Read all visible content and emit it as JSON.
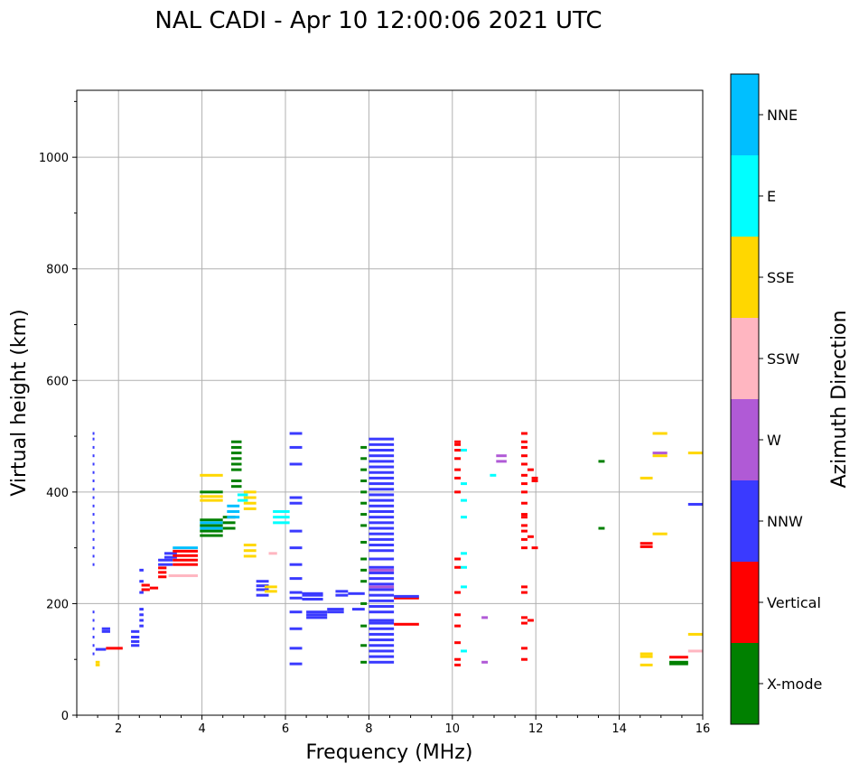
{
  "chart_data": {
    "type": "scatter",
    "title": "NAL CADI - Apr 10 12:00:06 2021 UTC",
    "xlabel": "Frequency (MHz)",
    "ylabel": "Virtual height (km)",
    "xlim": [
      1.0,
      16.0
    ],
    "ylim": [
      0,
      1120
    ],
    "xticks": [
      2,
      4,
      6,
      8,
      10,
      12,
      14,
      16
    ],
    "yticks": [
      0,
      200,
      400,
      600,
      800,
      1000
    ],
    "grid": true,
    "colorbar": {
      "label": "Azimuth Direction",
      "categories": [
        {
          "name": "X-mode",
          "color": "#008000"
        },
        {
          "name": "Vertical",
          "color": "#ff0000"
        },
        {
          "name": "NNW",
          "color": "#3a3aff"
        },
        {
          "name": "W",
          "color": "#b05ad6"
        },
        {
          "name": "SSW",
          "color": "#ffb6c1"
        },
        {
          "name": "SSE",
          "color": "#ffd700"
        },
        {
          "name": "E",
          "color": "#00ffff"
        },
        {
          "name": "NNE",
          "color": "#00bfff"
        }
      ]
    },
    "echoes": [
      {
        "f1": 1.38,
        "f2": 1.42,
        "h": [
          110,
          125,
          140,
          155,
          170,
          185,
          270,
          285,
          300,
          315,
          330,
          345,
          360,
          375,
          390,
          405,
          420,
          435,
          450,
          465,
          480,
          495,
          505
        ],
        "c": "NNW"
      },
      {
        "f1": 1.45,
        "f2": 1.55,
        "h": [
          95,
          90
        ],
        "c": "SSE"
      },
      {
        "f1": 1.45,
        "f2": 1.7,
        "h": [
          118
        ],
        "c": "NNW"
      },
      {
        "f1": 1.6,
        "f2": 1.8,
        "h": [
          150,
          155
        ],
        "c": "NNW"
      },
      {
        "f1": 1.7,
        "f2": 2.1,
        "h": [
          120
        ],
        "c": "Vertical"
      },
      {
        "f1": 2.3,
        "f2": 2.5,
        "h": [
          125,
          132,
          140,
          150
        ],
        "c": "NNW"
      },
      {
        "f1": 2.5,
        "f2": 2.6,
        "h": [
          160,
          170,
          180,
          190,
          220,
          240,
          260
        ],
        "c": "NNW"
      },
      {
        "f1": 2.55,
        "f2": 2.75,
        "h": [
          225,
          233
        ],
        "c": "Vertical"
      },
      {
        "f1": 2.75,
        "f2": 2.95,
        "h": [
          228
        ],
        "c": "Vertical"
      },
      {
        "f1": 2.95,
        "f2": 3.15,
        "h": [
          248,
          256,
          264
        ],
        "c": "Vertical"
      },
      {
        "f1": 2.95,
        "f2": 3.3,
        "h": [
          270,
          278
        ],
        "c": "NNW"
      },
      {
        "f1": 3.1,
        "f2": 3.4,
        "h": [
          283,
          290
        ],
        "c": "NNW"
      },
      {
        "f1": 3.3,
        "f2": 3.9,
        "h": [
          270,
          278,
          286,
          294
        ],
        "c": "Vertical"
      },
      {
        "f1": 3.3,
        "f2": 3.9,
        "h": [
          300
        ],
        "c": "NNE"
      },
      {
        "f1": 3.2,
        "f2": 3.9,
        "h": [
          250
        ],
        "c": "SSW"
      },
      {
        "f1": 3.95,
        "f2": 4.5,
        "h": [
          385,
          392
        ],
        "c": "SSE"
      },
      {
        "f1": 3.95,
        "f2": 4.5,
        "h": [
          400
        ],
        "c": "X-mode"
      },
      {
        "f1": 3.95,
        "f2": 4.5,
        "h": [
          430
        ],
        "c": "SSE"
      },
      {
        "f1": 3.95,
        "f2": 4.5,
        "h": [
          322,
          330,
          340,
          350
        ],
        "c": "X-mode"
      },
      {
        "f1": 3.95,
        "f2": 4.5,
        "h": [
          335,
          345
        ],
        "c": "NNE"
      },
      {
        "f1": 4.5,
        "f2": 4.8,
        "h": [
          335,
          345,
          355
        ],
        "c": "X-mode"
      },
      {
        "f1": 4.6,
        "f2": 4.9,
        "h": [
          355,
          365,
          375
        ],
        "c": "NNE"
      },
      {
        "f1": 4.7,
        "f2": 4.95,
        "h": [
          410,
          420,
          440,
          450,
          460,
          470,
          480,
          490
        ],
        "c": "X-mode"
      },
      {
        "f1": 4.85,
        "f2": 5.1,
        "h": [
          385,
          395
        ],
        "c": "E"
      },
      {
        "f1": 5.0,
        "f2": 5.3,
        "h": [
          370,
          380,
          390,
          400
        ],
        "c": "SSE"
      },
      {
        "f1": 5.0,
        "f2": 5.3,
        "h": [
          285,
          295,
          305
        ],
        "c": "SSE"
      },
      {
        "f1": 5.3,
        "f2": 5.6,
        "h": [
          225,
          232,
          240
        ],
        "c": "NNW"
      },
      {
        "f1": 5.5,
        "f2": 5.8,
        "h": [
          230,
          222
        ],
        "c": "SSE"
      },
      {
        "f1": 5.3,
        "f2": 5.6,
        "h": [
          215
        ],
        "c": "NNW"
      },
      {
        "f1": 5.6,
        "f2": 5.8,
        "h": [
          290
        ],
        "c": "SSW"
      },
      {
        "f1": 5.7,
        "f2": 6.1,
        "h": [
          345,
          355,
          365
        ],
        "c": "E"
      },
      {
        "f1": 6.1,
        "f2": 6.4,
        "h": [
          505,
          480,
          450,
          390,
          380,
          330,
          300,
          270,
          245,
          220,
          210,
          185,
          155,
          120,
          92
        ],
        "c": "NNW"
      },
      {
        "f1": 6.4,
        "f2": 6.9,
        "h": [
          208,
          215,
          218
        ],
        "c": "NNW"
      },
      {
        "f1": 6.5,
        "f2": 7.0,
        "h": [
          175,
          180,
          185
        ],
        "c": "NNW"
      },
      {
        "f1": 7.0,
        "f2": 7.4,
        "h": [
          185,
          190
        ],
        "c": "NNW"
      },
      {
        "f1": 7.2,
        "f2": 7.5,
        "h": [
          215,
          222
        ],
        "c": "NNW"
      },
      {
        "f1": 7.5,
        "f2": 7.9,
        "h": [
          218
        ],
        "c": "NNW"
      },
      {
        "f1": 7.6,
        "f2": 7.9,
        "h": [
          190
        ],
        "c": "NNW"
      },
      {
        "f1": 7.8,
        "f2": 7.95,
        "h": [
          95,
          125,
          160,
          200,
          240,
          260,
          280,
          310,
          340,
          360,
          380,
          400,
          420,
          440,
          460,
          480
        ],
        "c": "X-mode"
      },
      {
        "f1": 8.0,
        "f2": 8.6,
        "h": [
          95,
          105,
          115,
          125,
          135,
          145,
          155,
          165,
          170,
          185,
          195,
          205,
          215,
          225,
          235,
          245,
          255,
          265,
          280,
          295,
          305,
          315,
          325,
          335,
          345,
          355,
          365,
          375,
          385,
          395,
          405,
          415,
          425,
          435,
          445,
          455,
          465,
          475,
          485,
          495
        ],
        "c": "NNW"
      },
      {
        "f1": 8.0,
        "f2": 8.6,
        "h": [
          230,
          260
        ],
        "c": "W"
      },
      {
        "f1": 8.6,
        "f2": 9.2,
        "h": [
          163,
          210
        ],
        "c": "Vertical"
      },
      {
        "f1": 8.6,
        "f2": 9.2,
        "h": [
          213
        ],
        "c": "NNW"
      },
      {
        "f1": 10.05,
        "f2": 10.2,
        "h": [
          90,
          100,
          130,
          160,
          180,
          220,
          265,
          280,
          400,
          425,
          440,
          460,
          475,
          485,
          490
        ],
        "c": "Vertical"
      },
      {
        "f1": 10.2,
        "f2": 10.35,
        "h": [
          115,
          230,
          265,
          290,
          355,
          385,
          415,
          475
        ],
        "c": "E"
      },
      {
        "f1": 10.7,
        "f2": 10.85,
        "h": [
          95,
          175
        ],
        "c": "W"
      },
      {
        "f1": 10.9,
        "f2": 11.05,
        "h": [
          430
        ],
        "c": "E"
      },
      {
        "f1": 11.05,
        "f2": 11.3,
        "h": [
          455,
          465
        ],
        "c": "W"
      },
      {
        "f1": 11.65,
        "f2": 11.8,
        "h": [
          100,
          120,
          165,
          175,
          220,
          230,
          300,
          315,
          330,
          340,
          355,
          360,
          380,
          400,
          415,
          430,
          450,
          465,
          480,
          490,
          505
        ],
        "c": "Vertical"
      },
      {
        "f1": 11.8,
        "f2": 11.95,
        "h": [
          170,
          320,
          440
        ],
        "c": "Vertical"
      },
      {
        "f1": 11.9,
        "f2": 12.05,
        "h": [
          300,
          420,
          425
        ],
        "c": "Vertical"
      },
      {
        "f1": 13.5,
        "f2": 13.65,
        "h": [
          335,
          455
        ],
        "c": "X-mode"
      },
      {
        "f1": 14.5,
        "f2": 14.8,
        "h": [
          90,
          105,
          110
        ],
        "c": "SSE"
      },
      {
        "f1": 14.5,
        "f2": 14.8,
        "h": [
          302,
          308
        ],
        "c": "Vertical"
      },
      {
        "f1": 14.5,
        "f2": 14.8,
        "h": [
          425
        ],
        "c": "SSE"
      },
      {
        "f1": 14.8,
        "f2": 15.15,
        "h": [
          325,
          465,
          505
        ],
        "c": "SSE"
      },
      {
        "f1": 14.8,
        "f2": 15.15,
        "h": [
          470
        ],
        "c": "W"
      },
      {
        "f1": 15.2,
        "f2": 15.65,
        "h": [
          92,
          95
        ],
        "c": "X-mode"
      },
      {
        "f1": 15.2,
        "f2": 15.65,
        "h": [
          104
        ],
        "c": "Vertical"
      },
      {
        "f1": 15.65,
        "f2": 16.0,
        "h": [
          115
        ],
        "c": "SSW"
      },
      {
        "f1": 15.65,
        "f2": 16.0,
        "h": [
          145,
          470
        ],
        "c": "SSE"
      },
      {
        "f1": 15.65,
        "f2": 16.0,
        "h": [
          378
        ],
        "c": "NNW"
      }
    ]
  }
}
